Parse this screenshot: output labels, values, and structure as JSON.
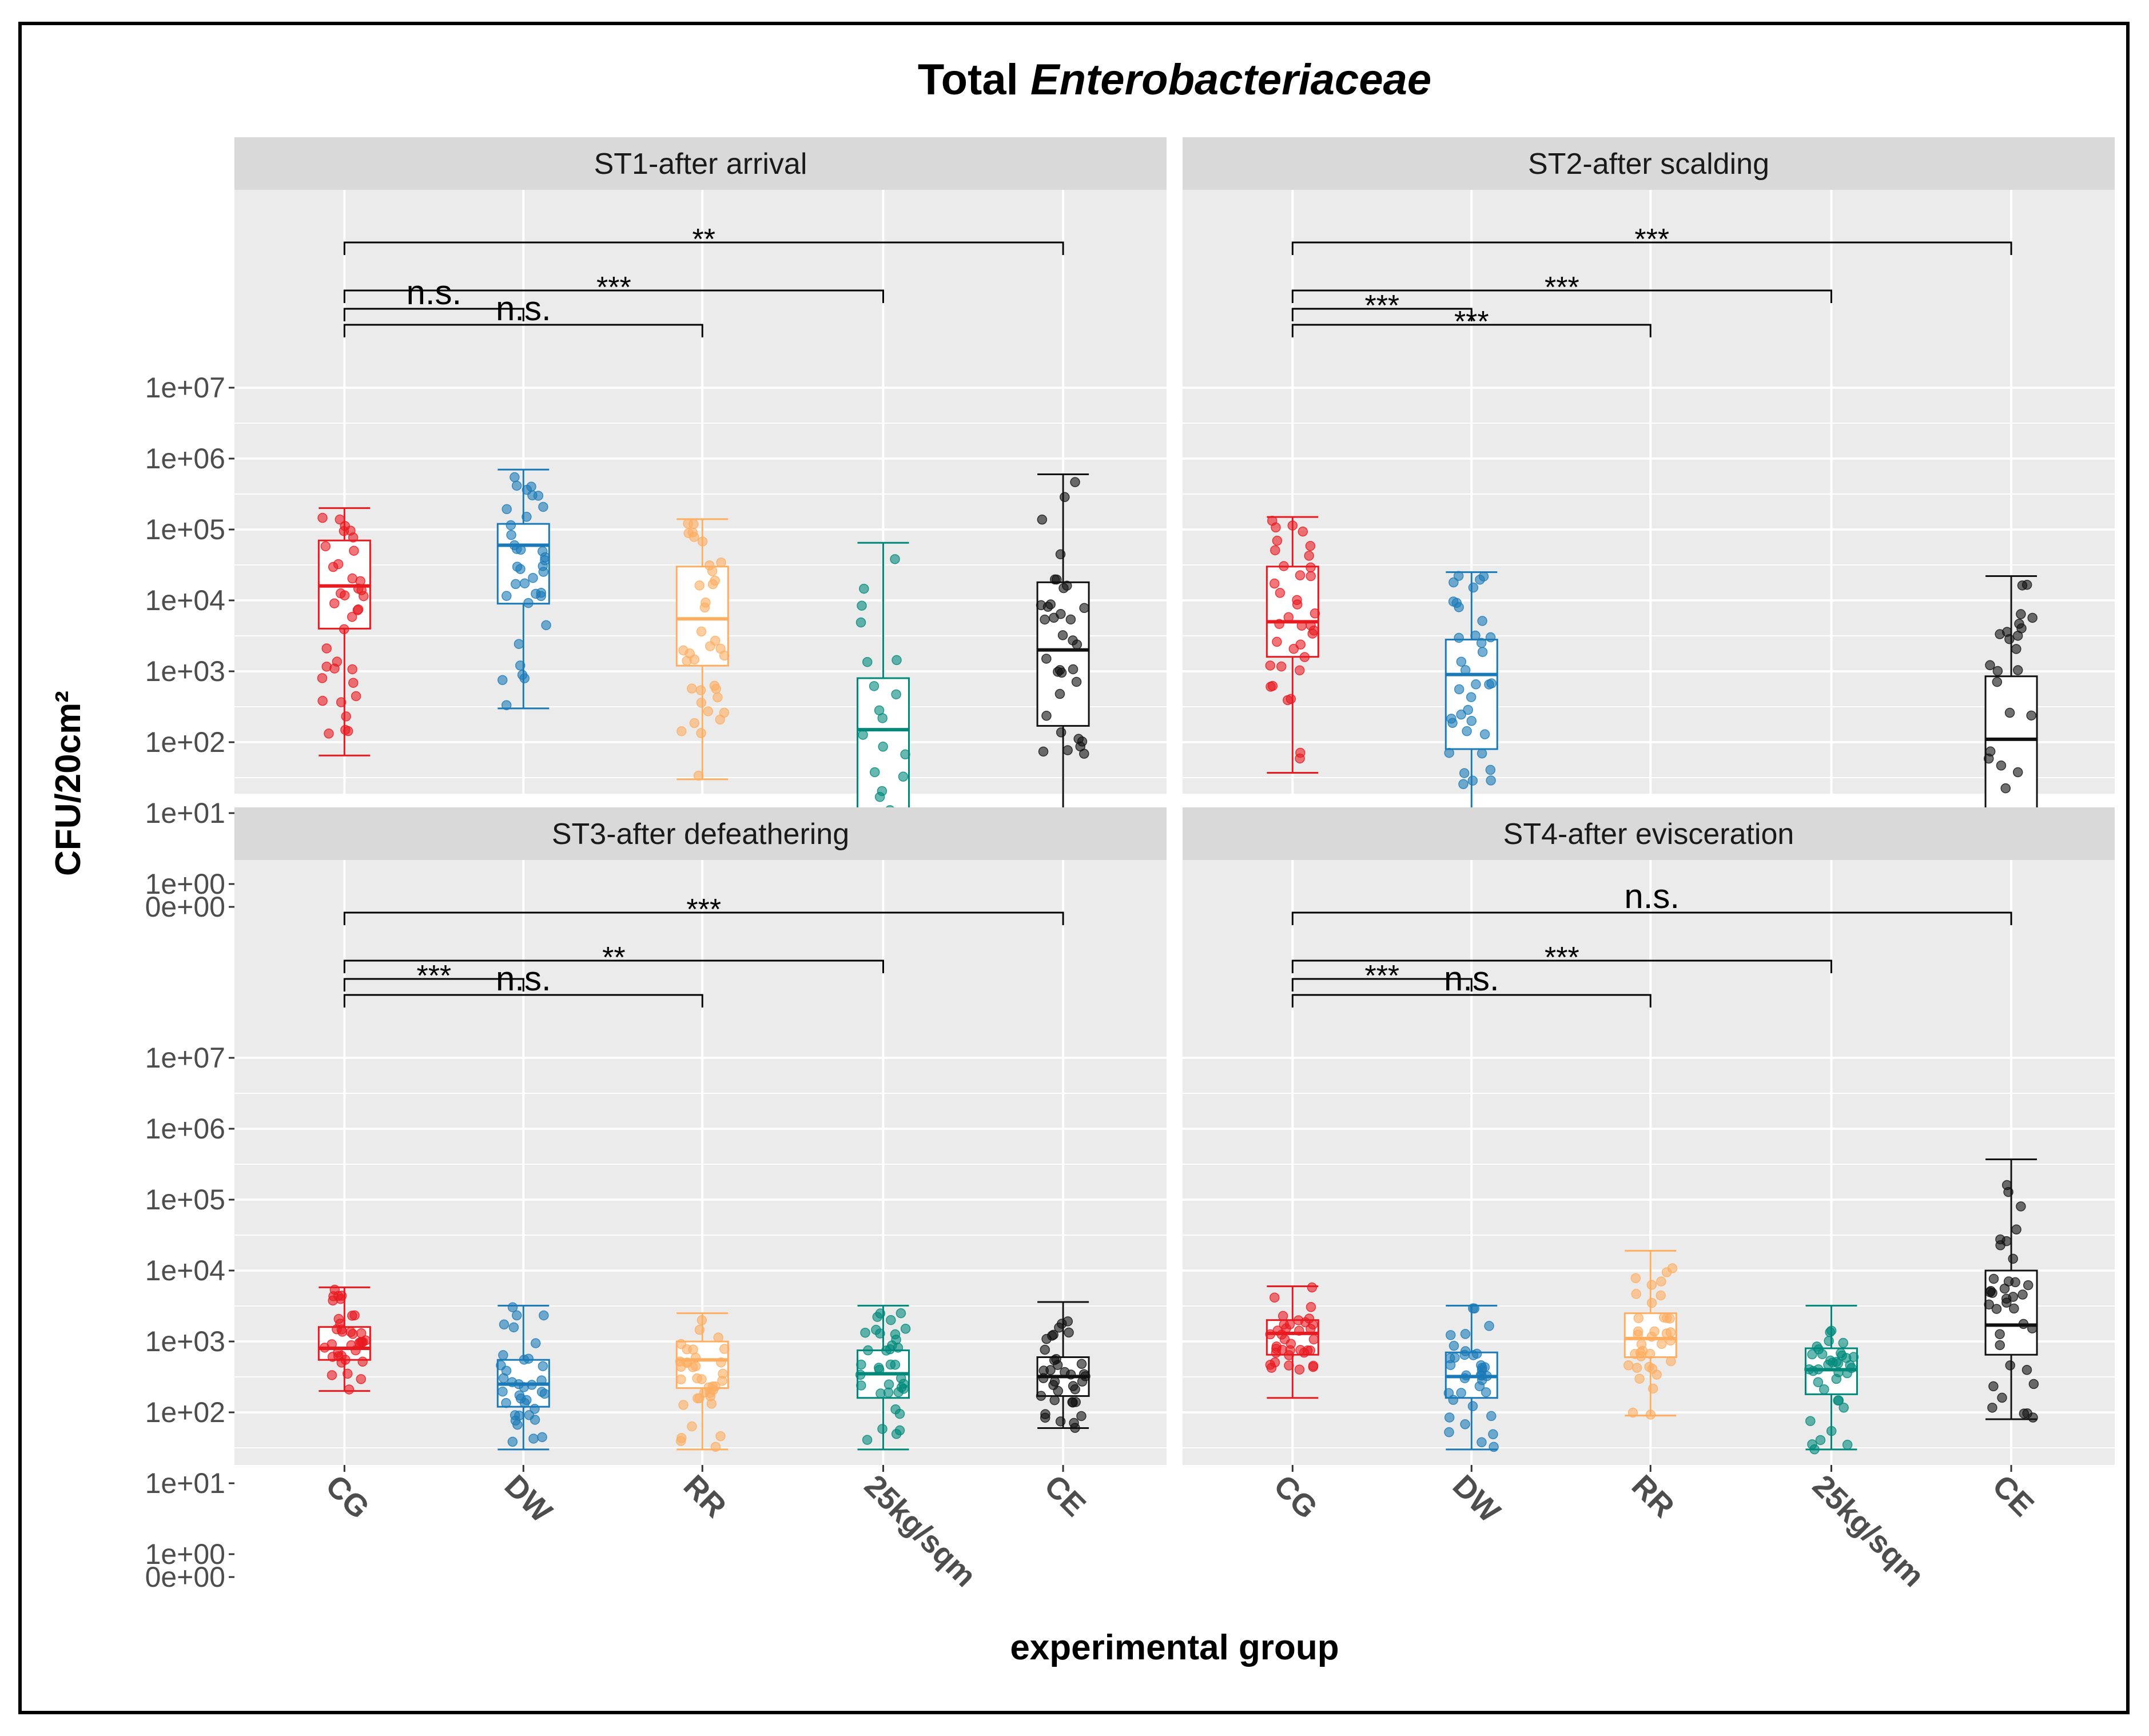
{
  "chart_data": {
    "type": "box",
    "title": "Total",
    "title_italic": "Enterobacteriaceae",
    "xlabel": "experimental group",
    "ylabel": "CFU/20cm²",
    "y_scale": "pseudo-log",
    "y_ticks": [
      "0e+00",
      "1e+00",
      "1e+01",
      "1e+02",
      "1e+03",
      "1e+04",
      "1e+05",
      "1e+06",
      "1e+07"
    ],
    "categories": [
      "CG",
      "DW",
      "RR",
      "25kg/sqm",
      "CE"
    ],
    "colors": {
      "CG": "#e8191f",
      "DW": "#1a7ab8",
      "RR": "#fdae61",
      "25kg/sqm": "#00897b",
      "CE": "#111111"
    },
    "grid": true,
    "facets": [
      {
        "label": "ST1-after arrival",
        "boxes": [
          {
            "group": "CG",
            "min": 65,
            "q1": 4000,
            "median": 16000,
            "q3": 70000,
            "max": 200000
          },
          {
            "group": "DW",
            "min": 300,
            "q1": 9000,
            "median": 60000,
            "q3": 120000,
            "max": 700000
          },
          {
            "group": "RR",
            "min": 30,
            "q1": 1200,
            "median": 5500,
            "q3": 30000,
            "max": 140000
          },
          {
            "group": "25kg/sqm",
            "min": 0,
            "q1": 0,
            "median": 150,
            "q3": 800,
            "max": 65000
          },
          {
            "group": "CE",
            "min": 0,
            "q1": 170,
            "median": 2000,
            "q3": 18000,
            "max": 600000
          }
        ],
        "comparisons": [
          {
            "from": "CG",
            "to": "DW",
            "label": "n.s."
          },
          {
            "from": "CG",
            "to": "RR",
            "label": "n.s."
          },
          {
            "from": "CG",
            "to": "25kg/sqm",
            "label": "***"
          },
          {
            "from": "CG",
            "to": "CE",
            "label": "**"
          }
        ]
      },
      {
        "label": "ST2-after scalding",
        "boxes": [
          {
            "group": "CG",
            "min": 37,
            "q1": 1600,
            "median": 5000,
            "q3": 30000,
            "max": 150000
          },
          {
            "group": "DW",
            "min": 0,
            "q1": 80,
            "median": 900,
            "q3": 2800,
            "max": 25000
          },
          {
            "group": "RR",
            "min": 0,
            "q1": 0,
            "median": 0,
            "q3": 0,
            "max": 0
          },
          {
            "group": "25kg/sqm",
            "min": 0,
            "q1": 0,
            "median": 0,
            "q3": 0,
            "max": 0
          },
          {
            "group": "CE",
            "min": 0,
            "q1": 0,
            "median": 110,
            "q3": 850,
            "max": 22000
          }
        ],
        "comparisons": [
          {
            "from": "CG",
            "to": "DW",
            "label": "***"
          },
          {
            "from": "CG",
            "to": "RR",
            "label": "***"
          },
          {
            "from": "CG",
            "to": "25kg/sqm",
            "label": "***"
          },
          {
            "from": "CG",
            "to": "CE",
            "label": "***"
          }
        ]
      },
      {
        "label": "ST3-after defeathering",
        "boxes": [
          {
            "group": "CG",
            "min": 200,
            "q1": 550,
            "median": 800,
            "q3": 1600,
            "max": 5800
          },
          {
            "group": "DW",
            "min": 30,
            "q1": 120,
            "median": 250,
            "q3": 550,
            "max": 3200
          },
          {
            "group": "RR",
            "min": 30,
            "q1": 220,
            "median": 550,
            "q3": 1000,
            "max": 2500
          },
          {
            "group": "25kg/sqm",
            "min": 30,
            "q1": 160,
            "median": 350,
            "q3": 750,
            "max": 3200
          },
          {
            "group": "CE",
            "min": 60,
            "q1": 170,
            "median": 320,
            "q3": 600,
            "max": 3600
          }
        ],
        "comparisons": [
          {
            "from": "CG",
            "to": "DW",
            "label": "***"
          },
          {
            "from": "CG",
            "to": "RR",
            "label": "n.s."
          },
          {
            "from": "CG",
            "to": "25kg/sqm",
            "label": "**"
          },
          {
            "from": "CG",
            "to": "CE",
            "label": "***"
          }
        ]
      },
      {
        "label": "ST4-after evisceration",
        "boxes": [
          {
            "group": "CG",
            "min": 160,
            "q1": 650,
            "median": 1300,
            "q3": 2000,
            "max": 6000
          },
          {
            "group": "DW",
            "min": 30,
            "q1": 160,
            "median": 320,
            "q3": 700,
            "max": 3200
          },
          {
            "group": "RR",
            "min": 90,
            "q1": 600,
            "median": 1100,
            "q3": 2500,
            "max": 19000
          },
          {
            "group": "25kg/sqm",
            "min": 30,
            "q1": 180,
            "median": 400,
            "q3": 800,
            "max": 3200
          },
          {
            "group": "CE",
            "min": 80,
            "q1": 650,
            "median": 1700,
            "q3": 10000,
            "max": 370000
          }
        ],
        "comparisons": [
          {
            "from": "CG",
            "to": "DW",
            "label": "***"
          },
          {
            "from": "CG",
            "to": "RR",
            "label": "n.s."
          },
          {
            "from": "CG",
            "to": "25kg/sqm",
            "label": "***"
          },
          {
            "from": "CG",
            "to": "CE",
            "label": "n.s."
          }
        ]
      }
    ]
  }
}
